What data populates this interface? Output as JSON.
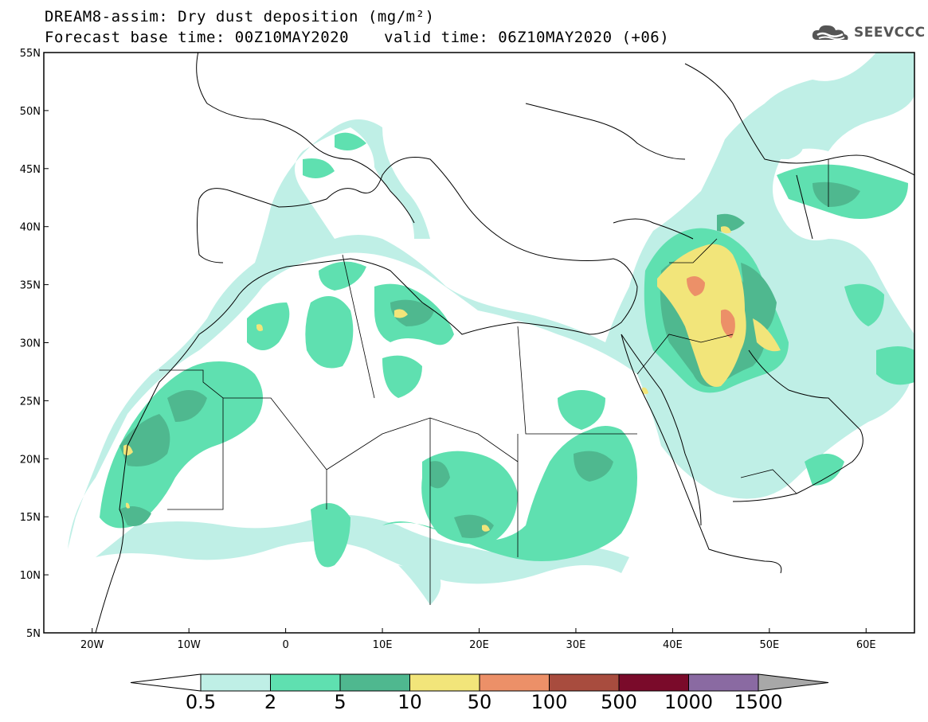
{
  "title_line1": "DREAM8-assim: Dry dust deposition (mg/m²)",
  "title_line2": "Forecast base time: 00Z10MAY2020",
  "valid_time": "valid time: 06Z10MAY2020 (+06)",
  "logo": {
    "text": "SEEVCCC",
    "icon": "cloud-icon"
  },
  "map": {
    "extent": {
      "lon_min": -25,
      "lon_max": 65,
      "lat_min": 5,
      "lat_max": 55
    },
    "lat_ticks": [
      {
        "lat": 55,
        "label": "55N"
      },
      {
        "lat": 50,
        "label": "50N"
      },
      {
        "lat": 45,
        "label": "45N"
      },
      {
        "lat": 40,
        "label": "40N"
      },
      {
        "lat": 35,
        "label": "35N"
      },
      {
        "lat": 30,
        "label": "30N"
      },
      {
        "lat": 25,
        "label": "25N"
      },
      {
        "lat": 20,
        "label": "20N"
      },
      {
        "lat": 15,
        "label": "15N"
      },
      {
        "lat": 10,
        "label": "10N"
      },
      {
        "lat": 5,
        "label": "5N"
      }
    ],
    "lon_ticks": [
      {
        "lon": -20,
        "label": "20W"
      },
      {
        "lon": -10,
        "label": "10W"
      },
      {
        "lon": 0,
        "label": "0"
      },
      {
        "lon": 10,
        "label": "10E"
      },
      {
        "lon": 20,
        "label": "20E"
      },
      {
        "lon": 30,
        "label": "30E"
      },
      {
        "lon": 40,
        "label": "40E"
      },
      {
        "lon": 50,
        "label": "50E"
      },
      {
        "lon": 60,
        "label": "60E"
      }
    ]
  },
  "colorbar": {
    "labels": [
      "0.5",
      "2",
      "5",
      "10",
      "50",
      "100",
      "500",
      "1000",
      "1500"
    ],
    "colors": [
      "#bfefe6",
      "#5fe0b0",
      "#4fb88f",
      "#f2e57a",
      "#ec9068",
      "#a84c3e",
      "#7a0a2a",
      "#8a6aa2"
    ],
    "under_color": "#ffffff",
    "over_color": "#a8a8a8"
  }
}
